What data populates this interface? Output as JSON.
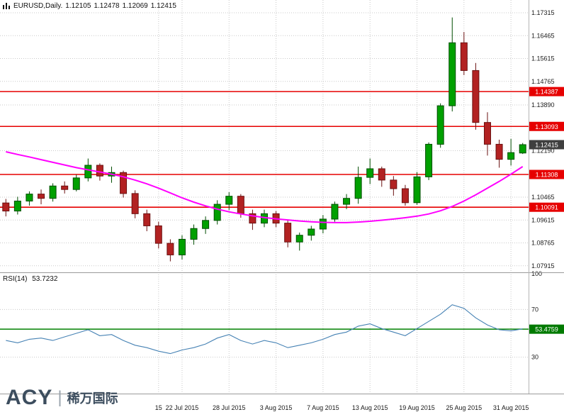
{
  "header": {
    "symbol": "EURUSD,Daily.",
    "open": "1.12105",
    "high": "1.12478",
    "low": "1.12069",
    "close": "1.12415"
  },
  "rsi_pane": {
    "label": "RSI(14)",
    "value": "53.7232"
  },
  "logo": {
    "brand": "ACY",
    "divider": "|",
    "cn": "稀万国际"
  },
  "colors": {
    "up": "#00a000",
    "up_border": "#004d00",
    "down": "#b22222",
    "down_border": "#6b1111",
    "ma": "#ff00ff",
    "rsi": "#4682b4",
    "level": "#008000",
    "hline": "#e60000",
    "badge_red": "#e60000",
    "badge_dark": "#3f3f3f",
    "badge_green": "#007a00",
    "grid": "#c9c9c9",
    "axis_text": "#1a1a1a"
  },
  "chart_data": [
    {
      "type": "candlestick",
      "title": "EURUSD Daily",
      "y_axis": {
        "min": 1.07699,
        "max": 1.17789,
        "labels": [
          "1.17315",
          "1.16465",
          "1.15615",
          "1.14765",
          "1.13890",
          "1.12190",
          "1.10465",
          "1.09615",
          "1.08765",
          "1.07915"
        ]
      },
      "x_axis": {
        "labels": [
          {
            "text": "15",
            "index": 13
          },
          {
            "text": "22 Jul 2015",
            "index": 15
          },
          {
            "text": "28 Jul 2015",
            "index": 19
          },
          {
            "text": "3 Aug 2015",
            "index": 23
          },
          {
            "text": "7 Aug 2015",
            "index": 27
          },
          {
            "text": "13 Aug 2015",
            "index": 31
          },
          {
            "text": "19 Aug 2015",
            "index": 35
          },
          {
            "text": "25 Aug 2015",
            "index": 39
          },
          {
            "text": "31 Aug 2015",
            "index": 43
          }
        ]
      },
      "candles": [
        [
          1.1025,
          1.104,
          1.0975,
          1.0995
        ],
        [
          1.0995,
          1.1048,
          1.0982,
          1.1032
        ],
        [
          1.1032,
          1.1068,
          1.1015,
          1.1058
        ],
        [
          1.1058,
          1.1075,
          1.102,
          1.1042
        ],
        [
          1.1042,
          1.1098,
          1.103,
          1.1088
        ],
        [
          1.1088,
          1.1105,
          1.106,
          1.1075
        ],
        [
          1.1075,
          1.113,
          1.1068,
          1.1118
        ],
        [
          1.1118,
          1.119,
          1.1105,
          1.1165
        ],
        [
          1.1165,
          1.1172,
          1.1108,
          1.1125
        ],
        [
          1.1125,
          1.116,
          1.11,
          1.1138
        ],
        [
          1.1138,
          1.1145,
          1.1045,
          1.106
        ],
        [
          1.106,
          1.1072,
          1.0968,
          1.0985
        ],
        [
          1.0985,
          1.1,
          1.092,
          1.094
        ],
        [
          1.094,
          1.0955,
          1.0856,
          1.0875
        ],
        [
          1.0875,
          1.089,
          1.0808,
          1.0832
        ],
        [
          1.0832,
          1.0905,
          1.0815,
          1.089
        ],
        [
          1.089,
          1.0945,
          1.087,
          1.093
        ],
        [
          1.093,
          1.0975,
          1.091,
          1.096
        ],
        [
          1.096,
          1.1035,
          1.0945,
          1.102
        ],
        [
          1.102,
          1.1065,
          1.0998,
          1.105
        ],
        [
          1.105,
          1.1058,
          1.097,
          1.0985
        ],
        [
          1.0985,
          1.1,
          1.0925,
          1.095
        ],
        [
          1.095,
          1.1,
          1.0935,
          1.0985
        ],
        [
          1.0985,
          1.0995,
          1.0935,
          1.095
        ],
        [
          1.095,
          1.0962,
          1.086,
          1.088
        ],
        [
          1.088,
          1.0915,
          1.0848,
          1.0905
        ],
        [
          1.0905,
          1.094,
          1.0885,
          1.0928
        ],
        [
          1.0928,
          1.098,
          1.0912,
          1.0965
        ],
        [
          1.0965,
          1.103,
          1.0955,
          1.102
        ],
        [
          1.102,
          1.1058,
          1.1002,
          1.1042
        ],
        [
          1.1042,
          1.116,
          1.1022,
          1.112
        ],
        [
          1.112,
          1.119,
          1.1095,
          1.1152
        ],
        [
          1.1152,
          1.116,
          1.1085,
          1.111
        ],
        [
          1.111,
          1.1125,
          1.1052,
          1.1078
        ],
        [
          1.1078,
          1.1092,
          1.1015,
          1.1026
        ],
        [
          1.1026,
          1.114,
          1.1018,
          1.1122
        ],
        [
          1.1122,
          1.125,
          1.111,
          1.1243
        ],
        [
          1.1243,
          1.1395,
          1.123,
          1.1386
        ],
        [
          1.1386,
          1.1714,
          1.1365,
          1.162
        ],
        [
          1.162,
          1.166,
          1.15,
          1.1517
        ],
        [
          1.1517,
          1.1545,
          1.1297,
          1.1324
        ],
        [
          1.1324,
          1.1362,
          1.1201,
          1.1243
        ],
        [
          1.1243,
          1.126,
          1.1156,
          1.1187
        ],
        [
          1.1187,
          1.1263,
          1.1164,
          1.1212
        ],
        [
          1.12105,
          1.12478,
          1.12069,
          1.12415
        ]
      ],
      "ma": {
        "name": "moving-average",
        "values": [
          1.1215,
          1.1205,
          1.1196,
          1.1186,
          1.1176,
          1.1166,
          1.1156,
          1.1148,
          1.114,
          1.1132,
          1.1122,
          1.111,
          1.1096,
          1.108,
          1.1062,
          1.1044,
          1.1028,
          1.1014,
          1.1002,
          1.0992,
          1.0984,
          1.0977,
          1.0971,
          1.0966,
          1.0962,
          1.0958,
          1.0955,
          1.0953,
          1.0952,
          1.0952,
          1.0954,
          1.0957,
          1.0961,
          1.0965,
          1.097,
          1.0976,
          1.0984,
          1.0996,
          1.1012,
          1.1032,
          1.1055,
          1.108,
          1.1105,
          1.1132,
          1.116
        ]
      },
      "hlines": [
        {
          "price": 1.14387,
          "label": "1.14387"
        },
        {
          "price": 1.13093,
          "label": "1.13093"
        },
        {
          "price": 1.11308,
          "label": "1.11308"
        },
        {
          "price": 1.10091,
          "label": "1.10091"
        }
      ],
      "current_price": {
        "price": 1.12415,
        "label": "1.12415"
      }
    },
    {
      "type": "line",
      "name": "RSI(14)",
      "current_value": 53.7232,
      "range": [
        0,
        100
      ],
      "levels": [
        {
          "value": 100,
          "label": "100"
        },
        {
          "value": 70,
          "label": "70"
        },
        {
          "value": 30,
          "label": "30"
        }
      ],
      "level_line": {
        "value": 53.4759,
        "label": "53.4759"
      },
      "values": [
        44,
        42,
        45,
        46,
        44,
        47,
        50,
        53,
        48,
        49,
        44,
        40,
        38,
        35,
        33,
        36,
        38,
        41,
        46,
        49,
        44,
        41,
        44,
        42,
        38,
        40,
        42,
        45,
        49,
        51,
        56,
        58,
        54,
        51,
        48,
        54,
        60,
        66,
        74,
        71,
        63,
        57,
        53,
        52,
        53.7232
      ]
    }
  ]
}
